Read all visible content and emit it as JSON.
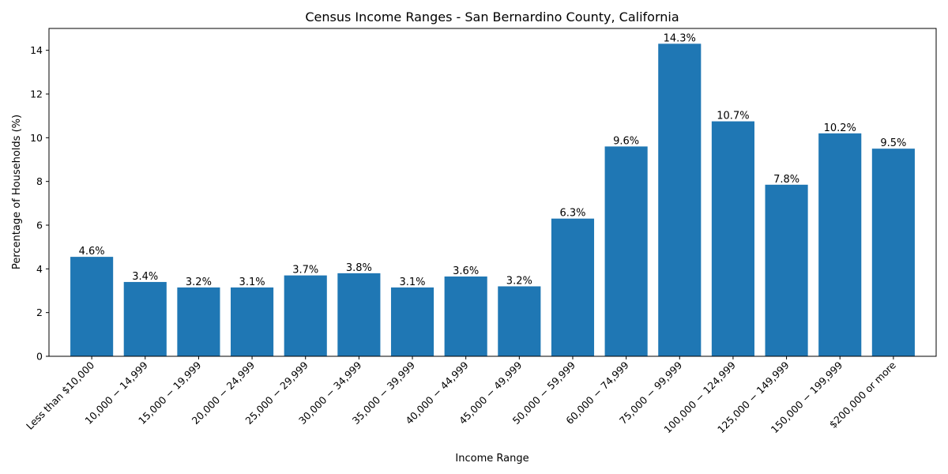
{
  "chart_data": {
    "type": "bar",
    "title": "Census Income Ranges - San Bernardino County, California",
    "xlabel": "Income Range",
    "ylabel": "Percentage of Households (%)",
    "ylim": [
      0,
      15
    ],
    "yticks": [
      0,
      2,
      4,
      6,
      8,
      10,
      12,
      14
    ],
    "grid": false,
    "bar_color": "#1f77b4",
    "categories": [
      "Less than $10,000",
      "10,000 − 14,999",
      "15,000 − 19,999",
      "20,000 − 24,999",
      "25,000 − 29,999",
      "30,000 − 34,999",
      "35,000 − 39,999",
      "40,000 − 44,999",
      "45,000 − 49,999",
      "50,000 − 59,999",
      "60,000 − 74,999",
      "75,000 − 99,999",
      "100,000 − 124,999",
      "125,000 − 149,999",
      "150,000 − 199,999",
      "$200,000 or more"
    ],
    "values": [
      4.55,
      3.4,
      3.15,
      3.15,
      3.7,
      3.8,
      3.15,
      3.65,
      3.2,
      6.3,
      9.6,
      14.3,
      10.75,
      7.85,
      10.2,
      9.5
    ],
    "data_labels": [
      "4.6%",
      "3.4%",
      "3.2%",
      "3.1%",
      "3.7%",
      "3.8%",
      "3.1%",
      "3.6%",
      "3.2%",
      "6.3%",
      "9.6%",
      "14.3%",
      "10.7%",
      "7.8%",
      "10.2%",
      "9.5%"
    ]
  }
}
